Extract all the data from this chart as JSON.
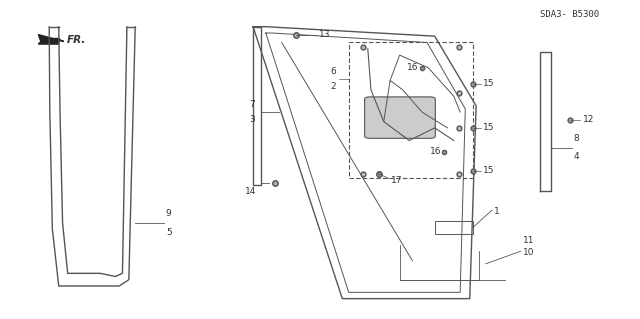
{
  "bg_color": "#ffffff",
  "diagram_color": "#555555",
  "text_color": "#333333",
  "part_number_text": "SDA3- B5300"
}
